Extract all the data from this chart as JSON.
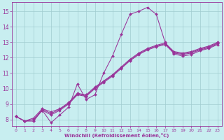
{
  "title": "",
  "xlabel": "Windchill (Refroidissement éolien,°C)",
  "ylabel": "",
  "bg_color": "#c8eef0",
  "line_color": "#993399",
  "xlim": [
    -0.5,
    23.5
  ],
  "ylim": [
    7.6,
    15.6
  ],
  "xticks": [
    0,
    1,
    2,
    3,
    4,
    5,
    6,
    7,
    8,
    9,
    10,
    11,
    12,
    13,
    14,
    15,
    16,
    17,
    18,
    19,
    20,
    21,
    22,
    23
  ],
  "yticks": [
    8,
    9,
    10,
    11,
    12,
    13,
    14,
    15
  ],
  "lines": [
    {
      "x": [
        0,
        1,
        2,
        3,
        4,
        5,
        6,
        7,
        8,
        9,
        10,
        11,
        12,
        13,
        14,
        15,
        16,
        17,
        18,
        19,
        20,
        21,
        22,
        23
      ],
      "y": [
        8.2,
        7.9,
        7.9,
        8.6,
        7.8,
        8.3,
        8.8,
        10.3,
        9.3,
        9.6,
        11.0,
        12.1,
        13.5,
        14.8,
        15.0,
        15.25,
        14.8,
        13.0,
        12.25,
        12.1,
        12.2,
        12.45,
        12.6,
        12.85
      ]
    },
    {
      "x": [
        0,
        1,
        2,
        3,
        4,
        5,
        6,
        7,
        8,
        9,
        10,
        11,
        12,
        13,
        14,
        15,
        16,
        17,
        18,
        19,
        20,
        21,
        22,
        23
      ],
      "y": [
        8.2,
        7.9,
        8.0,
        8.6,
        8.3,
        8.6,
        9.0,
        9.6,
        9.5,
        10.0,
        10.4,
        10.8,
        11.3,
        11.8,
        12.2,
        12.5,
        12.7,
        12.85,
        12.3,
        12.2,
        12.3,
        12.5,
        12.65,
        12.9
      ]
    },
    {
      "x": [
        0,
        1,
        2,
        3,
        4,
        5,
        6,
        7,
        8,
        9,
        10,
        11,
        12,
        13,
        14,
        15,
        16,
        17,
        18,
        19,
        20,
        21,
        22,
        23
      ],
      "y": [
        8.2,
        7.9,
        8.0,
        8.65,
        8.4,
        8.65,
        9.05,
        9.65,
        9.55,
        10.05,
        10.45,
        10.85,
        11.35,
        11.85,
        12.25,
        12.55,
        12.75,
        12.9,
        12.35,
        12.25,
        12.35,
        12.55,
        12.7,
        12.95
      ]
    },
    {
      "x": [
        0,
        1,
        2,
        3,
        4,
        5,
        6,
        7,
        8,
        9,
        10,
        11,
        12,
        13,
        14,
        15,
        16,
        17,
        18,
        19,
        20,
        21,
        22,
        23
      ],
      "y": [
        8.2,
        7.9,
        8.1,
        8.7,
        8.5,
        8.7,
        9.1,
        9.7,
        9.6,
        10.1,
        10.5,
        10.9,
        11.4,
        11.9,
        12.3,
        12.6,
        12.8,
        12.95,
        12.4,
        12.3,
        12.4,
        12.6,
        12.75,
        13.0
      ]
    }
  ]
}
